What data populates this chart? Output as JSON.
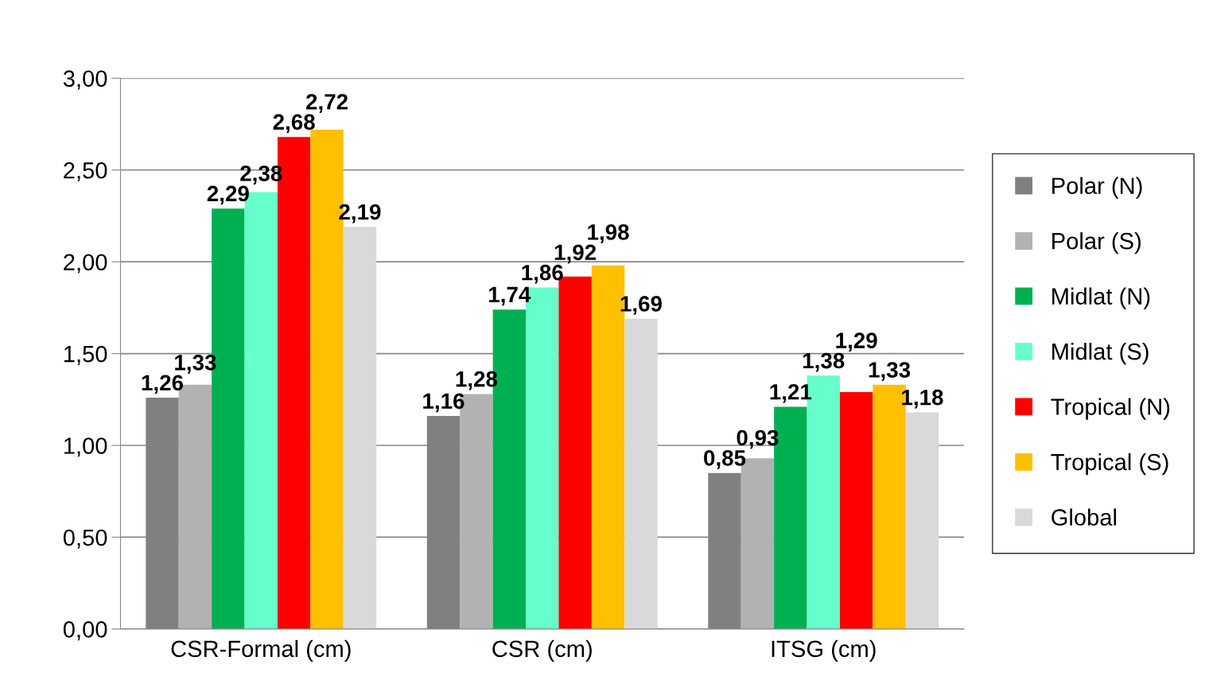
{
  "chart_data": {
    "type": "bar",
    "categories": [
      "CSR-Formal (cm)",
      "CSR (cm)",
      "ITSG (cm)"
    ],
    "series": [
      {
        "name": "Polar (N)",
        "color": "#808080",
        "values": [
          1.26,
          1.16,
          0.85
        ],
        "value_labels": [
          "1,26",
          "1,16",
          "0,85"
        ]
      },
      {
        "name": "Polar (S)",
        "color": "#b2b2b2",
        "values": [
          1.33,
          1.28,
          0.93
        ],
        "value_labels": [
          "1,33",
          "1,28",
          "0,93"
        ]
      },
      {
        "name": "Midlat (N)",
        "color": "#00b050",
        "values": [
          2.29,
          1.74,
          1.21
        ],
        "value_labels": [
          "2,29",
          "1,74",
          "1,21"
        ]
      },
      {
        "name": "Midlat (S)",
        "color": "#66ffcc",
        "values": [
          2.38,
          1.86,
          1.38
        ],
        "value_labels": [
          "2,38",
          "1,86",
          "1,38"
        ]
      },
      {
        "name": "Tropical (N)",
        "color": "#ff0000",
        "values": [
          2.68,
          1.92,
          1.29
        ],
        "value_labels": [
          "2,68",
          "1,92",
          "1,29"
        ]
      },
      {
        "name": "Tropical (S)",
        "color": "#ffc000",
        "values": [
          2.72,
          1.98,
          1.33
        ],
        "value_labels": [
          "2,72",
          "1,98",
          "1,33"
        ]
      },
      {
        "name": "Global",
        "color": "#d9d9d9",
        "values": [
          2.19,
          1.69,
          1.18
        ],
        "value_labels": [
          "2,19",
          "1,69",
          "1,18"
        ]
      }
    ],
    "ylim": [
      0,
      3
    ],
    "yticks": [
      {
        "value": 0,
        "label": "0,00"
      },
      {
        "value": 0.5,
        "label": "0,50"
      },
      {
        "value": 1,
        "label": "1,00"
      },
      {
        "value": 1.5,
        "label": "1,50"
      },
      {
        "value": 2,
        "label": "2,00"
      },
      {
        "value": 2.5,
        "label": "2,50"
      },
      {
        "value": 3,
        "label": "3,00"
      }
    ],
    "grid": "y",
    "legend": "right"
  }
}
